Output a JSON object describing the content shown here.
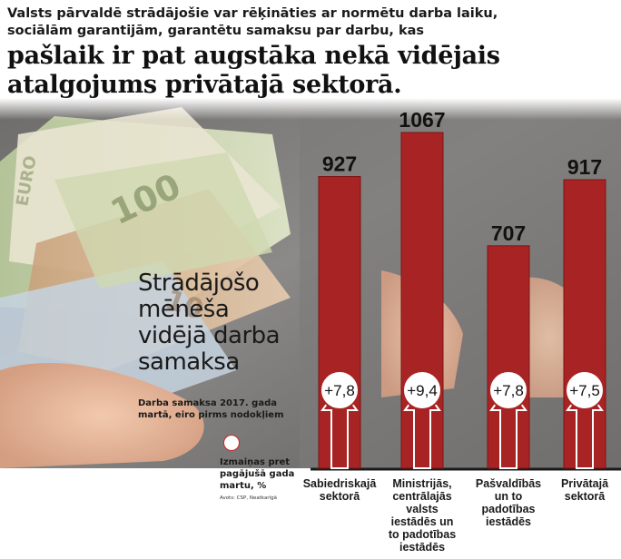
{
  "headline": {
    "line1": "Valsts pārvaldē strādājošie var rēķināties ar normētu darba laiku,",
    "line2": "sociālām garantijām,  garantētu samaksu par darbu, kas",
    "line3": "pašlaik ir pat augstāka nekā vidējais",
    "line4": "atalgojums privātajā sektorā."
  },
  "colors": {
    "bar": "#a82424",
    "bar_edge": "#7c1414",
    "accent": "#c62828"
  },
  "chart_data": {
    "type": "bar",
    "title_lines": [
      "Strādājošo",
      "mēneša",
      "vidējā darba",
      "samaksa"
    ],
    "subtitle": "Darba samaksa 2017. gada martā, eiro pirms nodokļiem",
    "legend": "Izmaiņas pret pagājušā gada martu, %",
    "source": "Avots: CSP, Neatkarīgā",
    "unit": "eiro",
    "categories": [
      [
        "Sabiedriskajā",
        "sektorā"
      ],
      [
        "Ministrijās,",
        "centrālajās",
        "valsts",
        "iestādēs un",
        "to padotības",
        "iestādēs"
      ],
      [
        "Pašvaldībās",
        "un to",
        "padotības",
        "iestādēs"
      ],
      [
        "Privātajā",
        "sektorā"
      ]
    ],
    "values": [
      927,
      1067,
      707,
      917
    ],
    "value_labels": [
      "927",
      "1067",
      "707",
      "917"
    ],
    "change_pct": [
      "+7,8",
      "+9,4",
      "+7,8",
      "+7,5"
    ],
    "ylim": [
      0,
      1100
    ],
    "grid": false
  }
}
